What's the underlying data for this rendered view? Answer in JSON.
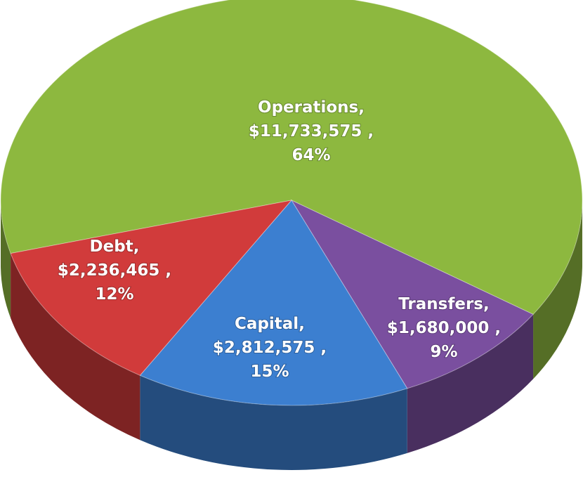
{
  "chart_data": {
    "type": "pie3d",
    "categories": [
      "Operations,",
      "Transfers,",
      "Capital,",
      "Debt,"
    ],
    "values": [
      11733575,
      1680000,
      2812575,
      2236465
    ],
    "value_labels": [
      "$11,733,575 ,",
      "$1,680,000 ,",
      "$2,812,575 ,",
      "$2,236,465 ,"
    ],
    "percent_labels": [
      "64%",
      "9%",
      "15%",
      "12%"
    ],
    "colors": [
      "#8db83f",
      "#7a4f9f",
      "#3c7fd0",
      "#d13b3b"
    ]
  }
}
